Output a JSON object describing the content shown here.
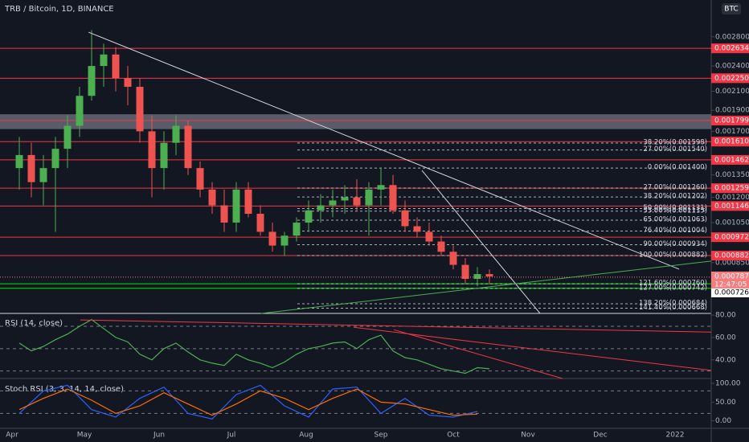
{
  "chart_data": [
    {
      "type": "candlestick",
      "title": "TRB / Bitcoin, 1D, BINANCE",
      "button": "BTC",
      "log": true,
      "xlim": [
        -5,
        290
      ],
      "ylim": [
        0.00065,
        0.0034
      ],
      "xticks": [
        {
          "value": 0,
          "label": "Apr"
        },
        {
          "value": 30,
          "label": "May"
        },
        {
          "value": 61,
          "label": "Jun"
        },
        {
          "value": 91,
          "label": "Jul"
        },
        {
          "value": 122,
          "label": "Aug"
        },
        {
          "value": 153,
          "label": "Sep"
        },
        {
          "value": 183,
          "label": "Oct"
        },
        {
          "value": 214,
          "label": "Nov"
        },
        {
          "value": 244,
          "label": "Dec"
        },
        {
          "value": 275,
          "label": "2022"
        }
      ],
      "yticks": [
        {
          "value": 0.0028,
          "label": "0.002800"
        },
        {
          "value": 0.0024,
          "label": "0.002400"
        },
        {
          "value": 0.0021,
          "label": "0.002100"
        },
        {
          "value": 0.0019,
          "label": "0.001900"
        },
        {
          "value": 0.0017,
          "label": "0.001700"
        },
        {
          "value": 0.00135,
          "label": "0.001350"
        },
        {
          "value": 0.0012,
          "label": "0.001200"
        },
        {
          "value": 0.00105,
          "label": "0.001050"
        },
        {
          "value": 0.00085,
          "label": "0.000850"
        }
      ],
      "up_color": "#4caf50",
      "down_color": "#ef5350",
      "x": [
        3,
        8,
        13,
        18,
        23,
        28,
        33,
        38,
        43,
        48,
        53,
        58,
        63,
        68,
        73,
        78,
        83,
        88,
        93,
        98,
        103,
        108,
        113,
        118,
        123,
        128,
        133,
        138,
        143,
        148,
        153,
        158,
        163,
        168,
        173,
        178,
        183,
        188,
        193,
        198
      ],
      "open": [
        0.0014,
        0.0015,
        0.0013,
        0.0014,
        0.00155,
        0.00175,
        0.00205,
        0.0024,
        0.00255,
        0.00225,
        0.00215,
        0.0017,
        0.0014,
        0.0016,
        0.00175,
        0.0014,
        0.00125,
        0.00115,
        0.00105,
        0.00125,
        0.0011,
        0.001,
        0.00093,
        0.00098,
        0.00105,
        0.00112,
        0.00115,
        0.00118,
        0.0012,
        0.00115,
        0.00125,
        0.00128,
        0.00112,
        0.00103,
        0.001,
        0.00095,
        0.0009,
        0.00084,
        0.00078,
        0.0008
      ],
      "high": [
        0.00165,
        0.0016,
        0.0015,
        0.00165,
        0.00185,
        0.00215,
        0.0029,
        0.0027,
        0.00265,
        0.0024,
        0.00225,
        0.00185,
        0.0017,
        0.00185,
        0.0018,
        0.00145,
        0.0013,
        0.00125,
        0.0013,
        0.0013,
        0.00115,
        0.00105,
        0.001,
        0.00108,
        0.00118,
        0.00122,
        0.00125,
        0.00128,
        0.00132,
        0.0013,
        0.0014,
        0.00135,
        0.00118,
        0.00108,
        0.00105,
        0.00098,
        0.00093,
        0.00087,
        0.00083,
        0.00082
      ],
      "low": [
        0.00125,
        0.0012,
        0.00115,
        0.001,
        0.0014,
        0.00165,
        0.002,
        0.00215,
        0.0021,
        0.00195,
        0.0016,
        0.0012,
        0.00125,
        0.0015,
        0.00135,
        0.0012,
        0.0011,
        0.001,
        0.001,
        0.00108,
        0.00098,
        0.0009,
        0.00088,
        0.00095,
        0.001,
        0.00105,
        0.00108,
        0.0011,
        0.00112,
        0.00098,
        0.00115,
        0.0011,
        0.001,
        0.00097,
        0.00093,
        0.00088,
        0.00082,
        0.00076,
        0.00075,
        0.00076
      ],
      "close": [
        0.0015,
        0.0013,
        0.0014,
        0.00155,
        0.00175,
        0.00205,
        0.0024,
        0.00255,
        0.00225,
        0.00215,
        0.0017,
        0.0014,
        0.0016,
        0.00175,
        0.0014,
        0.00125,
        0.00115,
        0.00105,
        0.00125,
        0.0011,
        0.001,
        0.00093,
        0.00098,
        0.00105,
        0.00112,
        0.00115,
        0.00118,
        0.0012,
        0.00115,
        0.00125,
        0.00128,
        0.00112,
        0.00103,
        0.001,
        0.00095,
        0.0009,
        0.00084,
        0.00078,
        0.0008,
        0.00079
      ],
      "zone": [
        0.00172,
        0.00186
      ],
      "levels": {
        "color": "#f23645",
        "values": [
          0.002634,
          0.00225,
          0.001799,
          0.00161,
          0.001462,
          0.001259,
          0.001146,
          0.000972,
          0.000882
        ],
        "value_labels": [
          "0.002634",
          "0.002250",
          "0.001799",
          "0.001610",
          "0.001462",
          "0.001259",
          "0.001146",
          "0.000972",
          "0.000882"
        ]
      },
      "supports": {
        "color": "#00e600",
        "values": [
          0.00076,
          0.000742
        ],
        "value_labels": [
          "0.000760",
          "0.000742"
        ]
      },
      "last_price": {
        "value": 0.000787,
        "label": "0.000787",
        "countdown": "12:47:05",
        "color": "#f77c80"
      },
      "marker": {
        "value": 0.000726,
        "label": "0.000726"
      },
      "fib_levels": {
        "values": [
          0.001598,
          0.00154,
          0.0014,
          0.00126,
          0.001202,
          0.001131,
          0.001115,
          0.001063,
          0.001004,
          0.000934,
          0.000882,
          0.00076,
          0.000742,
          0.000684,
          0.000668
        ],
        "value_labels": [
          "38.20%(0.001598)",
          "27.00%(0.001540)",
          "0.00%(0.001400)",
          "27.00%(0.001260)",
          "38.20%(0.001202)",
          "50.00%(0.001131)",
          "55.00%(0.001115)",
          "65.00%(0.001063)",
          "76.40%(0.001004)",
          "90.00%(0.000934)",
          "100.00%(0.000882)",
          "121.60%(0.000760)",
          "127.00%(0.000742)",
          "138.20%(0.000684)",
          "141.40%(0.000668)"
        ]
      },
      "trendlines": [
        {
          "color": "#d1d4dc",
          "x": [
            31.7,
            276.7
          ],
          "y": [
            0.002869,
            0.000821
          ]
        },
        {
          "color": "#d1d4dc",
          "x": [
            170,
            219
          ],
          "y": [
            0.001383,
            0.00065
          ]
        },
        {
          "color": "#4caf50",
          "x": [
            103.3,
            290
          ],
          "y": [
            0.00065,
            0.000857
          ]
        }
      ]
    },
    {
      "type": "line",
      "title": "RSI (14, close)",
      "ylim": [
        23.3,
        81.5
      ],
      "yticks": [
        {
          "value": 80,
          "label": "80.00"
        },
        {
          "value": 60,
          "label": "60.00"
        },
        {
          "value": 40,
          "label": "40.00"
        }
      ],
      "bands": [
        70,
        50,
        30
      ],
      "x": [
        3,
        8,
        13,
        18,
        23,
        28,
        33,
        38,
        43,
        48,
        53,
        58,
        63,
        68,
        73,
        78,
        83,
        88,
        93,
        98,
        103,
        108,
        113,
        118,
        123,
        128,
        133,
        138,
        143,
        148,
        153,
        158,
        163,
        168,
        173,
        178,
        183,
        188,
        193,
        198
      ],
      "series": [
        {
          "color": "#4caf50",
          "values": [
            55,
            48,
            52,
            58,
            63,
            70,
            76,
            68,
            60,
            56,
            45,
            40,
            50,
            55,
            47,
            40,
            37,
            35,
            45,
            40,
            37,
            33,
            38,
            45,
            50,
            52,
            55,
            56,
            50,
            58,
            62,
            48,
            42,
            40,
            36,
            32,
            30,
            28,
            33,
            32
          ]
        }
      ],
      "trendlines": [
        {
          "color": "#f23645",
          "x": [
            28.3,
            290
          ],
          "y": [
            75.7,
            64.8
          ]
        },
        {
          "color": "#f23645",
          "x": [
            141.7,
            290
          ],
          "y": [
            69.1,
            30.6
          ]
        },
        {
          "color": "#f23645",
          "x": [
            158.3,
            228.3
          ],
          "y": [
            67,
            23.3
          ]
        }
      ]
    },
    {
      "type": "line",
      "title": "Stoch RSI (3, 3, 14, 14, close)",
      "ylim": [
        -20,
        113
      ],
      "yticks": [
        {
          "value": 100,
          "label": "100.00"
        },
        {
          "value": 50,
          "label": "50.00"
        },
        {
          "value": 0,
          "label": "0.00"
        }
      ],
      "bands": [
        80,
        20
      ],
      "x": [
        3,
        13,
        23,
        33,
        43,
        53,
        63,
        73,
        83,
        93,
        103,
        113,
        123,
        133,
        143,
        153,
        163,
        173,
        183,
        193
      ],
      "series": [
        {
          "color": "#2962ff",
          "values": [
            20,
            80,
            95,
            30,
            10,
            60,
            90,
            20,
            5,
            70,
            95,
            40,
            10,
            85,
            90,
            20,
            60,
            15,
            10,
            25
          ]
        },
        {
          "color": "#ff6d00",
          "values": [
            30,
            60,
            85,
            55,
            20,
            40,
            75,
            45,
            15,
            45,
            80,
            60,
            30,
            60,
            85,
            50,
            45,
            30,
            15,
            18
          ]
        }
      ],
      "trendlines": []
    }
  ]
}
